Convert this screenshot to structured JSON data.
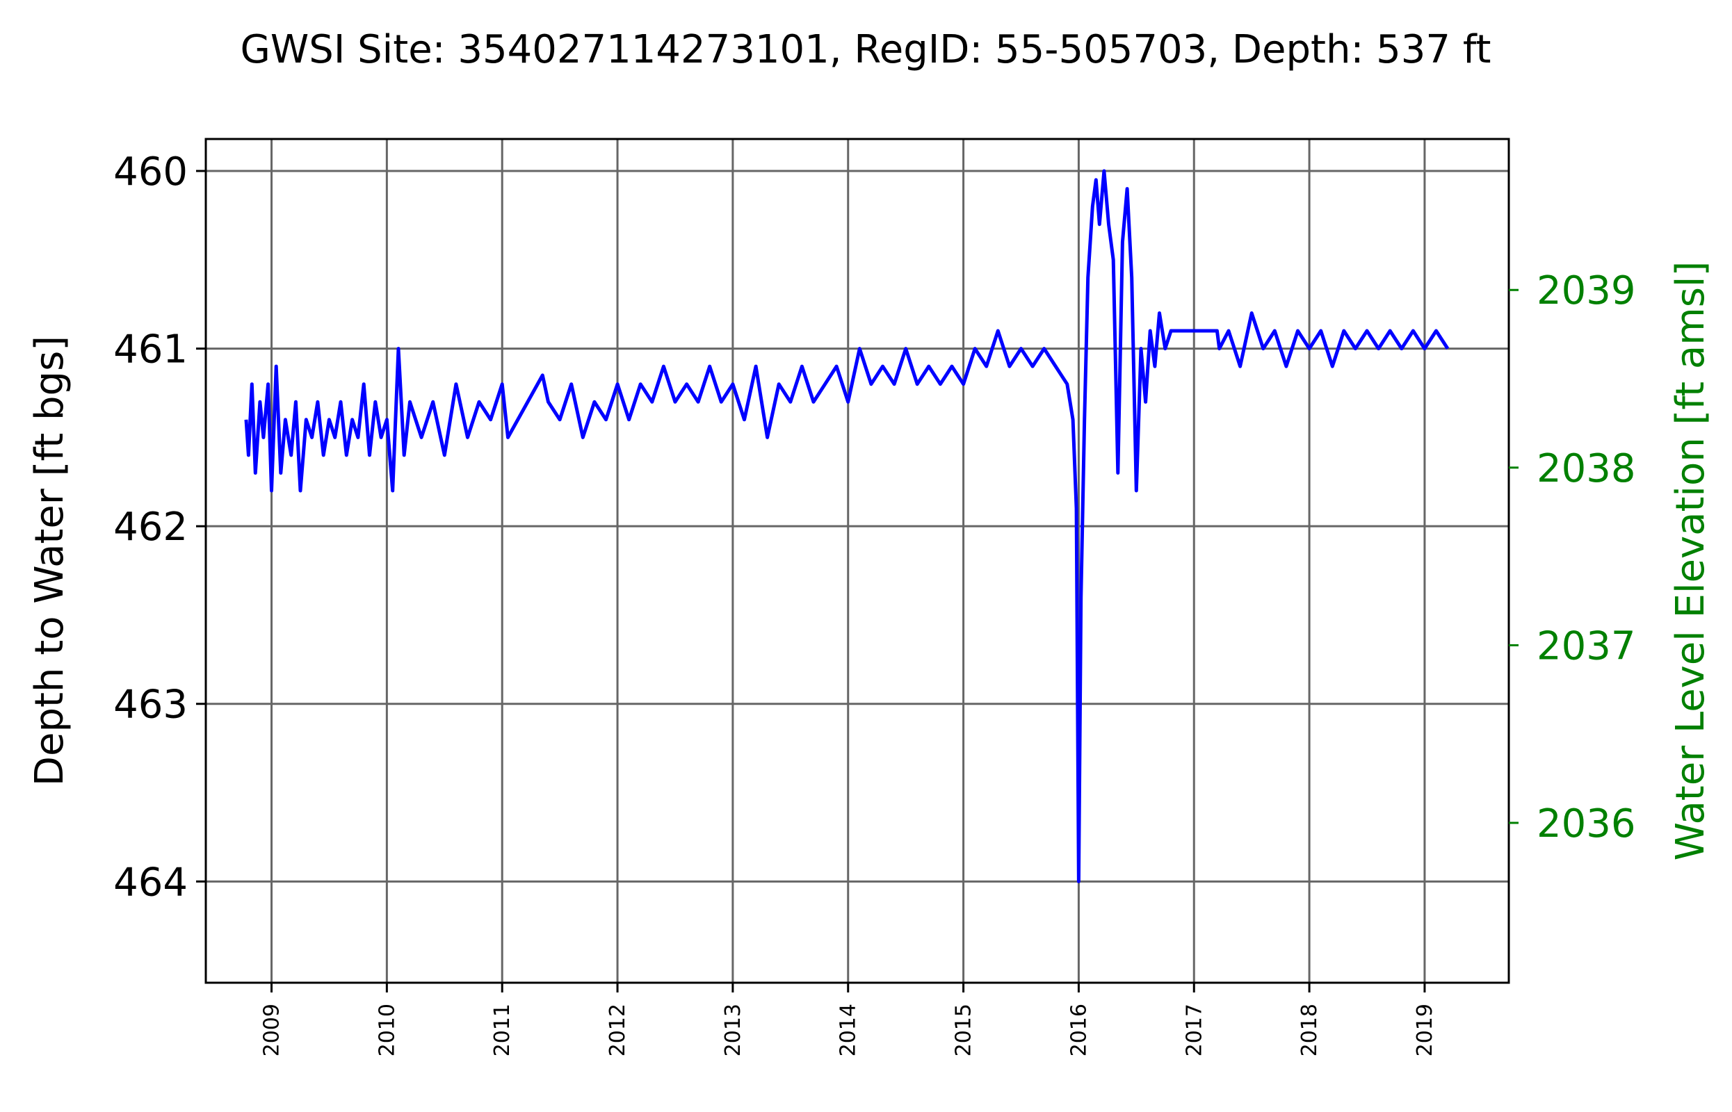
{
  "chart_data": {
    "type": "line",
    "title": "GWSI Site: 354027114273101, RegID: 55-505703, Depth: 537 ft",
    "ylabel": "Depth to Water [ft bgs]",
    "ylabel_right": "Water Level Elevation [ft amsl]",
    "xlabel": "",
    "x_ticks": [
      "2009",
      "2010",
      "2011",
      "2012",
      "2013",
      "2014",
      "2015",
      "2016",
      "2017",
      "2018",
      "2019"
    ],
    "xlim": [
      2008.43,
      2019.73
    ],
    "ylim": [
      464.57,
      459.82
    ],
    "yticks_left": [
      460,
      461,
      462,
      463,
      464
    ],
    "yticks_right": [
      2039,
      2038,
      2037,
      2036
    ],
    "right_axis_offset": 2499.67,
    "grid": true,
    "colors": {
      "series": "#0000ff",
      "right_axis": "#008000",
      "grid": "#666666"
    },
    "series": [
      {
        "x": [
          2008.78,
          2008.8,
          2008.83,
          2008.86,
          2008.9,
          2008.93,
          2008.97,
          2009.0,
          2009.04,
          2009.08,
          2009.12,
          2009.17,
          2009.21,
          2009.25,
          2009.3,
          2009.35,
          2009.4,
          2009.45,
          2009.5,
          2009.55,
          2009.6,
          2009.65,
          2009.7,
          2009.75,
          2009.8,
          2009.85,
          2009.9,
          2009.95,
          2010.0,
          2010.05,
          2010.1,
          2010.15,
          2010.2,
          2010.3,
          2010.4,
          2010.5,
          2010.6,
          2010.7,
          2010.8,
          2010.9,
          2011.0,
          2011.05,
          2011.35,
          2011.4,
          2011.5,
          2011.6,
          2011.7,
          2011.8,
          2011.9,
          2012.0,
          2012.1,
          2012.2,
          2012.3,
          2012.4,
          2012.5,
          2012.6,
          2012.7,
          2012.8,
          2012.9,
          2013.0,
          2013.1,
          2013.2,
          2013.3,
          2013.4,
          2013.5,
          2013.6,
          2013.7,
          2013.8,
          2013.9,
          2014.0,
          2014.1,
          2014.2,
          2014.3,
          2014.4,
          2014.5,
          2014.6,
          2014.7,
          2014.8,
          2014.9,
          2015.0,
          2015.1,
          2015.2,
          2015.3,
          2015.4,
          2015.5,
          2015.6,
          2015.7,
          2015.8,
          2015.9,
          2015.95,
          2015.98,
          2016.0,
          2016.02,
          2016.05,
          2016.08,
          2016.12,
          2016.15,
          2016.18,
          2016.22,
          2016.26,
          2016.3,
          2016.34,
          2016.38,
          2016.42,
          2016.46,
          2016.5,
          2016.54,
          2016.58,
          2016.62,
          2016.66,
          2016.7,
          2016.75,
          2016.8,
          2016.83,
          2017.2,
          2017.22,
          2017.3,
          2017.4,
          2017.5,
          2017.6,
          2017.7,
          2017.8,
          2017.9,
          2018.0,
          2018.1,
          2018.2,
          2018.3,
          2018.4,
          2018.5,
          2018.6,
          2018.7,
          2018.8,
          2018.9,
          2019.0,
          2019.1,
          2019.2
        ],
        "y": [
          461.4,
          461.6,
          461.2,
          461.7,
          461.3,
          461.5,
          461.2,
          461.8,
          461.1,
          461.7,
          461.4,
          461.6,
          461.3,
          461.8,
          461.4,
          461.5,
          461.3,
          461.6,
          461.4,
          461.5,
          461.3,
          461.6,
          461.4,
          461.5,
          461.2,
          461.6,
          461.3,
          461.5,
          461.4,
          461.8,
          461.0,
          461.6,
          461.3,
          461.5,
          461.3,
          461.6,
          461.2,
          461.5,
          461.3,
          461.4,
          461.2,
          461.5,
          461.15,
          461.3,
          461.4,
          461.2,
          461.5,
          461.3,
          461.4,
          461.2,
          461.4,
          461.2,
          461.3,
          461.1,
          461.3,
          461.2,
          461.3,
          461.1,
          461.3,
          461.2,
          461.4,
          461.1,
          461.5,
          461.2,
          461.3,
          461.1,
          461.3,
          461.2,
          461.1,
          461.3,
          461.0,
          461.2,
          461.1,
          461.2,
          461.0,
          461.2,
          461.1,
          461.2,
          461.1,
          461.2,
          461.0,
          461.1,
          460.9,
          461.1,
          461.0,
          461.1,
          461.0,
          461.1,
          461.2,
          461.4,
          461.9,
          464.0,
          462.4,
          461.4,
          460.6,
          460.2,
          460.05,
          460.3,
          460.0,
          460.3,
          460.5,
          461.7,
          460.4,
          460.1,
          460.6,
          461.8,
          461.0,
          461.3,
          460.9,
          461.1,
          460.8,
          461.0,
          460.9,
          460.9,
          460.9,
          461.0,
          460.9,
          461.1,
          460.8,
          461.0,
          460.9,
          461.1,
          460.9,
          461.0,
          460.9,
          461.1,
          460.9,
          461.0,
          460.9,
          461.0,
          460.9,
          461.0,
          460.9,
          461.0,
          460.9,
          461.0
        ]
      }
    ]
  }
}
